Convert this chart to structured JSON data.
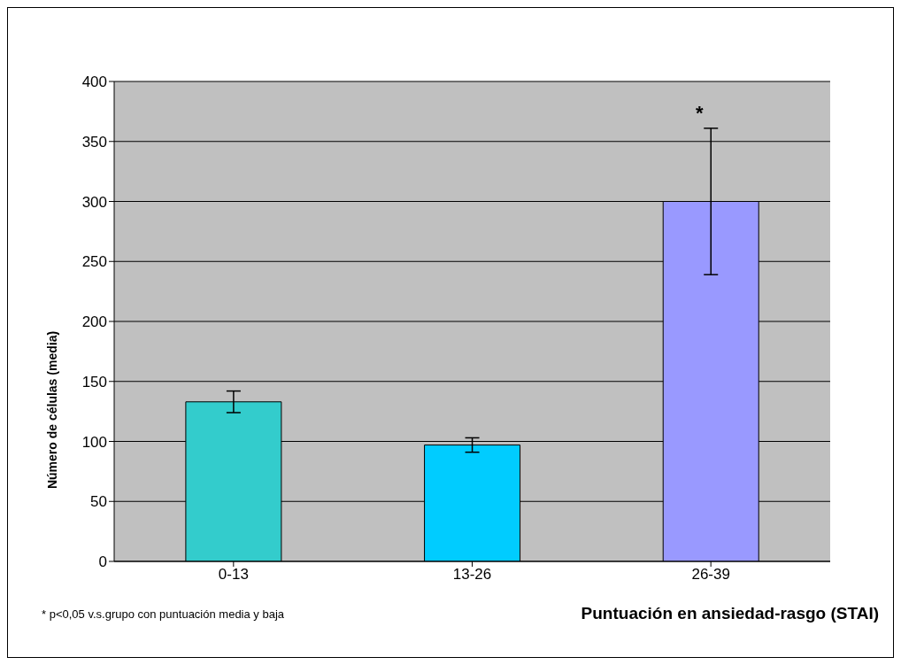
{
  "chart_data": {
    "type": "bar",
    "xlabel": "Puntuación en ansiedad-rasgo (STAI)",
    "ylabel": "Número de células (media)",
    "categories": [
      "0-13",
      "13-26",
      "26-39"
    ],
    "values": [
      133,
      97,
      300
    ],
    "colors": [
      "#33cccc",
      "#00ccff",
      "#9999ff"
    ],
    "errors": [
      9,
      6,
      61
    ],
    "ylim": [
      0,
      400
    ],
    "yticks": [
      0,
      50,
      100,
      150,
      200,
      250,
      300,
      350,
      400
    ],
    "grid": "y",
    "annotations": [
      "*",
      "* p<0,05 v.s.grupo con puntuación media y baja"
    ]
  }
}
